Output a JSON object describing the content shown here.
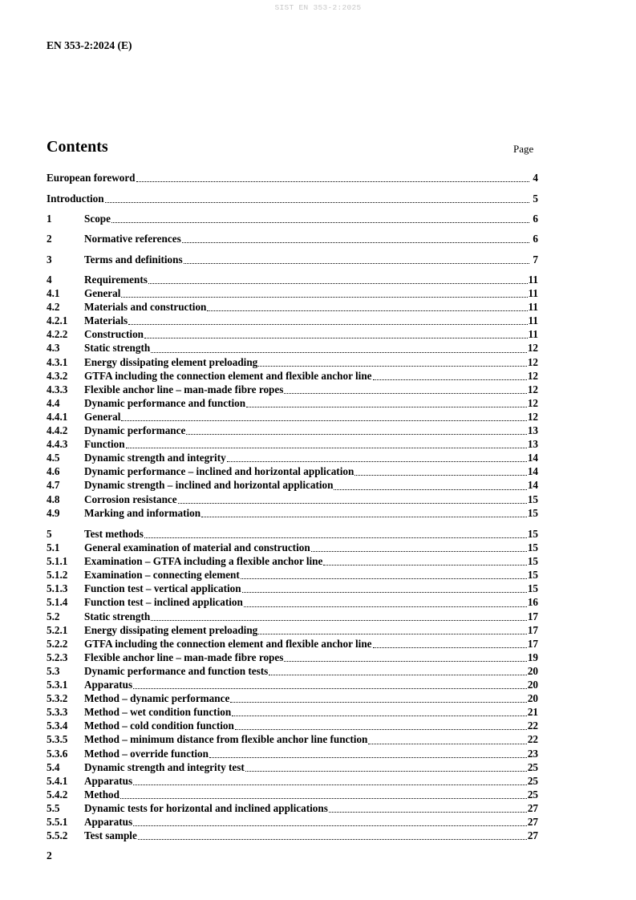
{
  "watermark": "SIST EN 353-2:2025",
  "header": "EN 353-2:2024 (E)",
  "contents_title": "Contents",
  "page_label": "Page",
  "page_number": "2",
  "toc_groups": [
    {
      "entries": [
        {
          "num": "",
          "title": "European foreword",
          "page": "4"
        }
      ]
    },
    {
      "entries": [
        {
          "num": "",
          "title": "Introduction",
          "page": "5"
        }
      ]
    },
    {
      "entries": [
        {
          "num": "1",
          "title": "Scope",
          "page": "6"
        }
      ]
    },
    {
      "entries": [
        {
          "num": "2",
          "title": "Normative references",
          "page": "6"
        }
      ]
    },
    {
      "entries": [
        {
          "num": "3",
          "title": "Terms and definitions",
          "page": "7"
        }
      ]
    },
    {
      "entries": [
        {
          "num": "4",
          "title": "Requirements",
          "page": "11"
        },
        {
          "num": "4.1",
          "title": "General",
          "page": "11"
        },
        {
          "num": "4.2",
          "title": "Materials and construction",
          "page": "11"
        },
        {
          "num": "4.2.1",
          "title": "Materials",
          "page": "11"
        },
        {
          "num": "4.2.2",
          "title": "Construction",
          "page": "11"
        },
        {
          "num": "4.3",
          "title": "Static strength",
          "page": "12"
        },
        {
          "num": "4.3.1",
          "title": "Energy dissipating element preloading",
          "page": "12"
        },
        {
          "num": "4.3.2",
          "title": "GTFA including the connection element and flexible anchor line",
          "page": "12"
        },
        {
          "num": "4.3.3",
          "title": "Flexible anchor line – man-made fibre ropes",
          "page": "12"
        },
        {
          "num": "4.4",
          "title": "Dynamic performance and function",
          "page": "12"
        },
        {
          "num": "4.4.1",
          "title": "General",
          "page": "12"
        },
        {
          "num": "4.4.2",
          "title": "Dynamic performance",
          "page": "13"
        },
        {
          "num": "4.4.3",
          "title": "Function",
          "page": "13"
        },
        {
          "num": "4.5",
          "title": "Dynamic strength and integrity",
          "page": "14"
        },
        {
          "num": "4.6",
          "title": "Dynamic performance – inclined and horizontal application",
          "page": "14"
        },
        {
          "num": "4.7",
          "title": "Dynamic strength – inclined and horizontal application",
          "page": "14"
        },
        {
          "num": "4.8",
          "title": "Corrosion resistance",
          "page": "15"
        },
        {
          "num": "4.9",
          "title": "Marking and information",
          "page": "15"
        }
      ]
    },
    {
      "entries": [
        {
          "num": "5",
          "title": "Test methods",
          "page": "15"
        },
        {
          "num": "5.1",
          "title": "General examination of material and construction",
          "page": "15"
        },
        {
          "num": "5.1.1",
          "title": "Examination – GTFA including a flexible anchor line",
          "page": "15"
        },
        {
          "num": "5.1.2",
          "title": "Examination – connecting element",
          "page": "15"
        },
        {
          "num": "5.1.3",
          "title": "Function test – vertical application",
          "page": "15"
        },
        {
          "num": "5.1.4",
          "title": "Function test – inclined application",
          "page": "16"
        },
        {
          "num": "5.2",
          "title": "Static strength",
          "page": "17"
        },
        {
          "num": "5.2.1",
          "title": "Energy dissipating element preloading",
          "page": "17"
        },
        {
          "num": "5.2.2",
          "title": "GTFA including the connection element and flexible anchor line",
          "page": "17"
        },
        {
          "num": "5.2.3",
          "title": "Flexible anchor line – man-made fibre ropes",
          "page": "19"
        },
        {
          "num": "5.3",
          "title": "Dynamic performance and function tests",
          "page": "20"
        },
        {
          "num": "5.3.1",
          "title": "Apparatus",
          "page": "20"
        },
        {
          "num": "5.3.2",
          "title": "Method – dynamic performance",
          "page": "20"
        },
        {
          "num": "5.3.3",
          "title": "Method – wet condition function",
          "page": "21"
        },
        {
          "num": "5.3.4",
          "title": "Method – cold condition function",
          "page": "22"
        },
        {
          "num": "5.3.5",
          "title": "Method – minimum distance from flexible anchor line function",
          "page": "22"
        },
        {
          "num": "5.3.6",
          "title": "Method – override function",
          "page": "23"
        },
        {
          "num": "5.4",
          "title": "Dynamic strength and integrity test",
          "page": "25"
        },
        {
          "num": "5.4.1",
          "title": "Apparatus",
          "page": "25"
        },
        {
          "num": "5.4.2",
          "title": "Method",
          "page": "25"
        },
        {
          "num": "5.5",
          "title": "Dynamic tests for horizontal and inclined applications",
          "page": "27"
        },
        {
          "num": "5.5.1",
          "title": "Apparatus",
          "page": "27"
        },
        {
          "num": "5.5.2",
          "title": "Test sample",
          "page": "27"
        }
      ]
    }
  ]
}
